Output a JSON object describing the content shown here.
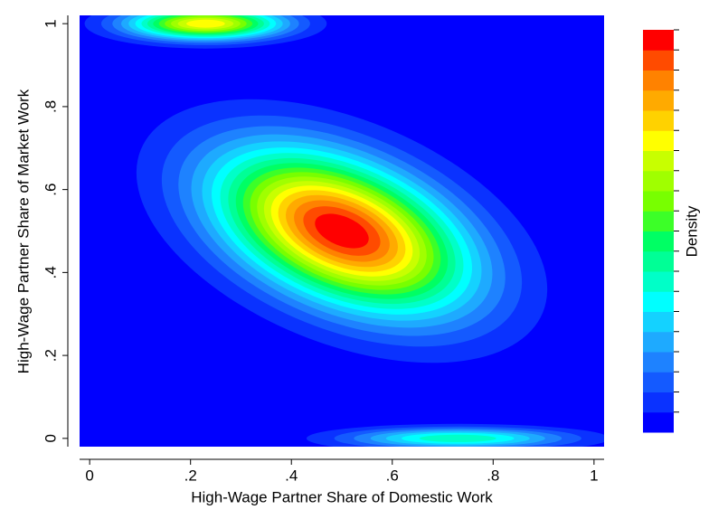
{
  "chart_data": {
    "type": "contour",
    "xlabel": "High-Wage Partner Share of Domestic Work",
    "ylabel": "High-Wage Partner Share of Market Work",
    "xlim": [
      -0.02,
      1.02
    ],
    "ylim": [
      -0.02,
      1.02
    ],
    "xticks": [
      0,
      {
        "value": 0.2,
        "label": ".2"
      },
      {
        "value": 0.4,
        "label": ".4"
      },
      {
        "value": 0.6,
        "label": ".6"
      },
      {
        "value": 0.8,
        "label": ".8"
      },
      1
    ],
    "yticks": [
      0,
      {
        "value": 0.2,
        "label": ".2"
      },
      {
        "value": 0.4,
        "label": ".4"
      },
      {
        "value": 0.6,
        "label": ".6"
      },
      {
        "value": 0.8,
        "label": ".8"
      },
      1
    ],
    "colorbar_label": "Density",
    "levels": [
      "#0000ff",
      "#0a32ff",
      "#145aff",
      "#1e82ff",
      "#1eaaff",
      "#14d2ff",
      "#00ffff",
      "#00ffc8",
      "#00ff96",
      "#00ff64",
      "#3cff28",
      "#78ff00",
      "#a0ff00",
      "#c8ff00",
      "#ffff00",
      "#ffd200",
      "#ffaa00",
      "#ff8200",
      "#ff4b00",
      "#ff0000"
    ],
    "peaks": [
      {
        "x": 0.5,
        "y": 0.5,
        "rx": 0.43,
        "ry": 0.27,
        "angle": -22,
        "level": 19
      },
      {
        "x": 0.23,
        "y": 1.0,
        "rx": 0.24,
        "ry": 0.06,
        "angle": 0,
        "level": 14
      },
      {
        "x": 0.73,
        "y": 0.0,
        "rx": 0.3,
        "ry": 0.035,
        "angle": 0,
        "level": 7
      }
    ]
  }
}
